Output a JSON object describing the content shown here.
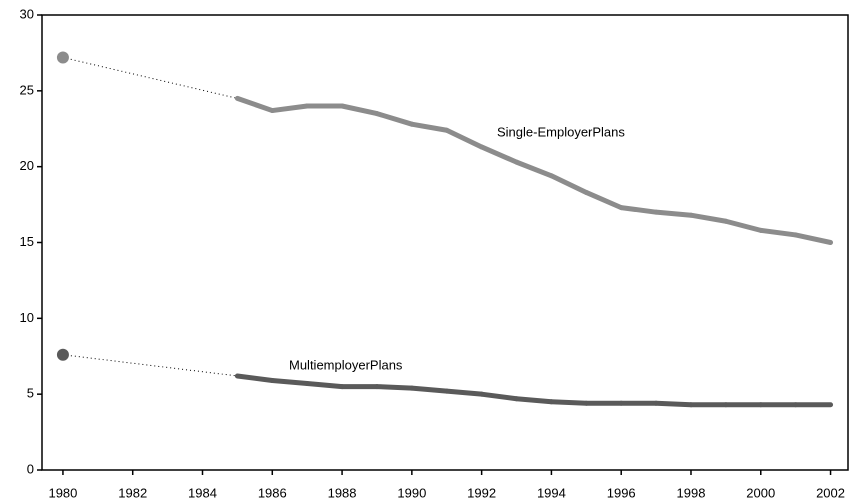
{
  "chart_data": {
    "type": "line",
    "x": [
      1980,
      1985,
      1986,
      1987,
      1988,
      1989,
      1990,
      1991,
      1992,
      1993,
      1994,
      1995,
      1996,
      1997,
      1998,
      1999,
      2000,
      2001,
      2002
    ],
    "series": [
      {
        "name": "Single-EmployerPlans",
        "color": "#8c8c8c",
        "values": [
          27.2,
          24.5,
          23.7,
          24.0,
          24.0,
          23.5,
          22.8,
          22.4,
          21.3,
          20.3,
          19.4,
          18.3,
          17.3,
          17.0,
          16.8,
          16.4,
          15.8,
          15.5,
          15.0
        ]
      },
      {
        "name": "MultiemployerPlans",
        "color": "#5a5a5a",
        "values": [
          7.6,
          6.2,
          5.9,
          5.7,
          5.5,
          5.5,
          5.4,
          5.2,
          5.0,
          4.7,
          4.5,
          4.4,
          4.4,
          4.4,
          4.3,
          4.3,
          4.3,
          4.3,
          4.3
        ]
      }
    ],
    "xlim": [
      1979.4,
      2002.5
    ],
    "xticks": [
      1980,
      1982,
      1984,
      1986,
      1988,
      1990,
      1992,
      1994,
      1996,
      1998,
      2000,
      2002
    ],
    "ylim": [
      0,
      30
    ],
    "yticks": [
      0,
      5,
      10,
      15,
      20,
      25,
      30
    ]
  }
}
